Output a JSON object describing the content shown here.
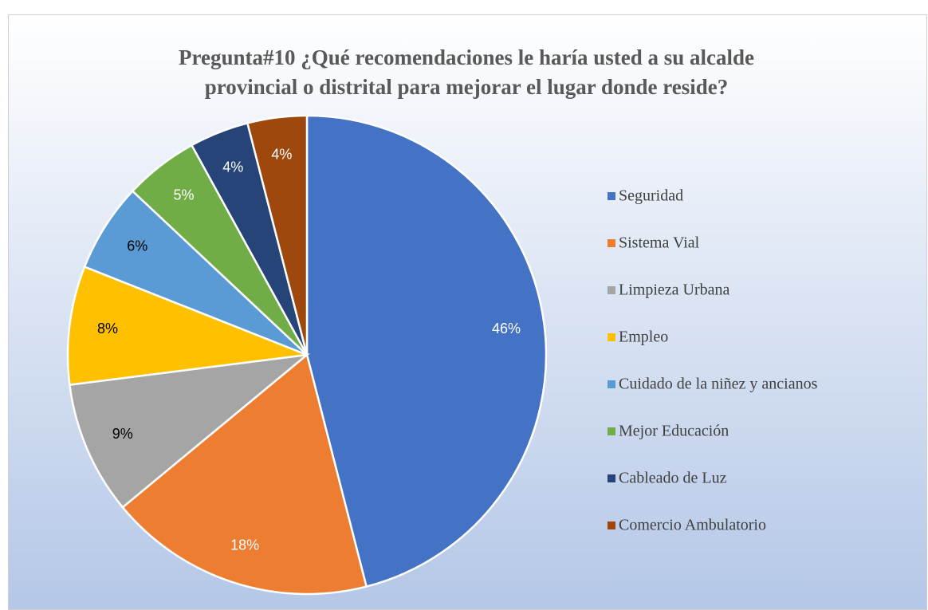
{
  "chart_data": {
    "type": "pie",
    "title": [
      "Pregunta#10 ¿Qué recomendaciones le haría usted a su alcalde",
      "provincial o distrital para mejorar el lugar donde reside?"
    ],
    "categories": [
      "Seguridad",
      "Sistema Vial",
      "Limpieza Urbana",
      "Empleo",
      "Cuidado de la niñez y ancianos",
      "Mejor Educación",
      "Cableado de Luz",
      "Comercio Ambulatorio"
    ],
    "values": [
      46,
      18,
      9,
      8,
      6,
      5,
      4,
      4
    ],
    "value_labels": [
      "46%",
      "18%",
      "9%",
      "8%",
      "6%",
      "5%",
      "4%",
      "4%"
    ],
    "colors": [
      "#4472c4",
      "#ed7d31",
      "#a5a5a5",
      "#ffc000",
      "#5b9bd5",
      "#70ad47",
      "#264478",
      "#9e480e"
    ],
    "label_colors": [
      "#ffffff",
      "#ffffff",
      "#000000",
      "#000000",
      "#000000",
      "#ffffff",
      "#ffffff",
      "#ffffff"
    ],
    "legend": "right"
  }
}
